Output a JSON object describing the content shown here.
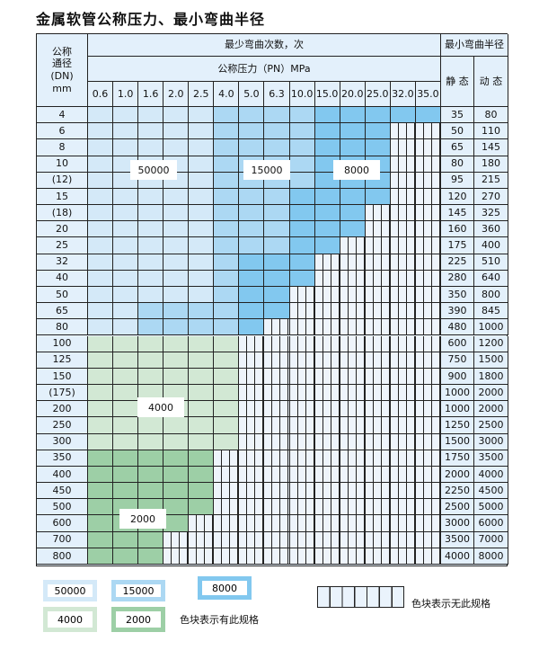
{
  "title": "金属软管公称压力、最小弯曲半径",
  "header": {
    "dn_label": "公称\n通径\n(DN)\nmm",
    "cycles_label": "最少弯曲次数，次",
    "pressure_label": "公称压力（PN）MPa",
    "radius_label": "最小弯曲半径",
    "static_label": "静 态",
    "dynamic_label": "动 态",
    "pressures": [
      "0.6",
      "1.0",
      "1.6",
      "2.0",
      "2.5",
      "4.0",
      "5.0",
      "6.3",
      "10.0",
      "15.0",
      "20.0",
      "25.0",
      "32.0",
      "35.0"
    ]
  },
  "zone_colors": {
    "a": "#d4e9f8",
    "b": "#acd8f3",
    "c": "#82c8ef",
    "g": "#d2e8d4",
    "h": "#9dcfa6"
  },
  "zone_values": {
    "a": "50000",
    "b": "15000",
    "c": "8000",
    "g": "4000",
    "h": "2000"
  },
  "rows": [
    {
      "dn": "4",
      "static": "35",
      "dynamic": "80",
      "zones": "aaaaabbbbccccc"
    },
    {
      "dn": "6",
      "static": "50",
      "dynamic": "110",
      "zones": "aaaaabbbbcccxx"
    },
    {
      "dn": "8",
      "static": "65",
      "dynamic": "145",
      "zones": "aaaaabbbbcccxx"
    },
    {
      "dn": "10",
      "static": "80",
      "dynamic": "180",
      "zones": "aaaaabbbbcccxx"
    },
    {
      "dn": "(12)",
      "static": "95",
      "dynamic": "215",
      "zones": "aaaaabbbbcccxx"
    },
    {
      "dn": "15",
      "static": "120",
      "dynamic": "270",
      "zones": "aaaaabbbccccxx"
    },
    {
      "dn": "(18)",
      "static": "145",
      "dynamic": "325",
      "zones": "aaaaabbbcccxxx"
    },
    {
      "dn": "20",
      "static": "160",
      "dynamic": "360",
      "zones": "aaaaabbbcccxxx"
    },
    {
      "dn": "25",
      "static": "175",
      "dynamic": "400",
      "zones": "aaaaabbbccxxxx"
    },
    {
      "dn": "32",
      "static": "225",
      "dynamic": "510",
      "zones": "aaaaabcccxxxxx"
    },
    {
      "dn": "40",
      "static": "280",
      "dynamic": "640",
      "zones": "aaaaabcccxxxxx"
    },
    {
      "dn": "50",
      "static": "350",
      "dynamic": "800",
      "zones": "aaaaabccxxxxxx"
    },
    {
      "dn": "65",
      "static": "390",
      "dynamic": "845",
      "zones": "aabbbbccxxxxxx"
    },
    {
      "dn": "80",
      "static": "480",
      "dynamic": "1000",
      "zones": "aabbbbcxxxxxxx"
    },
    {
      "dn": "100",
      "static": "600",
      "dynamic": "1200",
      "zones": "ggggggxxxxxxxx"
    },
    {
      "dn": "125",
      "static": "750",
      "dynamic": "1500",
      "zones": "ggggggxxxxxxxx"
    },
    {
      "dn": "150",
      "static": "900",
      "dynamic": "1800",
      "zones": "ggggggxxxxxxxx"
    },
    {
      "dn": "(175)",
      "static": "1000",
      "dynamic": "2000",
      "zones": "ggggggxxxxxxxx"
    },
    {
      "dn": "200",
      "static": "1000",
      "dynamic": "2000",
      "zones": "ggggggxxxxxxxx"
    },
    {
      "dn": "250",
      "static": "1250",
      "dynamic": "2500",
      "zones": "ggggggxxxxxxxx"
    },
    {
      "dn": "300",
      "static": "1500",
      "dynamic": "3000",
      "zones": "ggggggxxxxxxxx"
    },
    {
      "dn": "350",
      "static": "1750",
      "dynamic": "3500",
      "zones": "hhhhhxxxxxxxxx"
    },
    {
      "dn": "400",
      "static": "2000",
      "dynamic": "4000",
      "zones": "hhhhhxxxxxxxxx"
    },
    {
      "dn": "450",
      "static": "2250",
      "dynamic": "4500",
      "zones": "hhhhhxxxxxxxxx"
    },
    {
      "dn": "500",
      "static": "2500",
      "dynamic": "5000",
      "zones": "hhhhhxxxxxxxxx"
    },
    {
      "dn": "600",
      "static": "3000",
      "dynamic": "6000",
      "zones": "hhhhxxxxxxxxxx"
    },
    {
      "dn": "700",
      "static": "3500",
      "dynamic": "7000",
      "zones": "hhhxxxxxxxxxxx"
    },
    {
      "dn": "800",
      "static": "4000",
      "dynamic": "8000",
      "zones": "hhhxxxxxxxxxxx"
    }
  ],
  "zone_labels": [
    "50000",
    "15000",
    "8000",
    "4000",
    "2000"
  ],
  "legend": {
    "items": [
      "50000",
      "15000",
      "8000",
      "4000",
      "2000"
    ],
    "has_spec_text": "色块表示有此规格",
    "no_spec_text": "色块表示无此规格"
  }
}
